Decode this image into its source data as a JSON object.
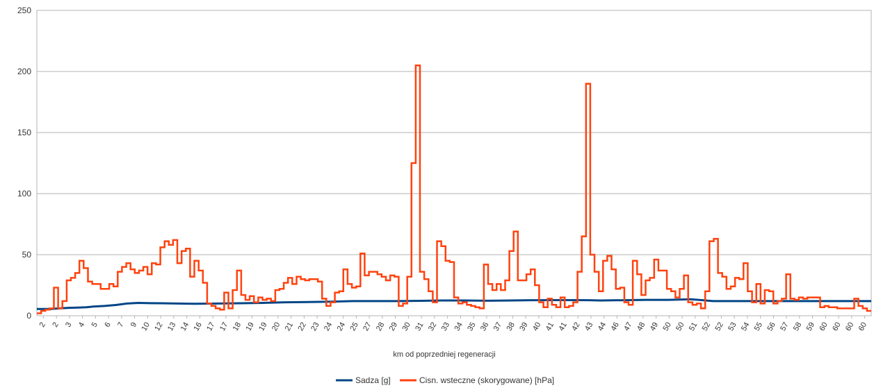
{
  "chart_data": {
    "type": "line",
    "xlabel": "km od poprzedniej regeneracji",
    "ylabel": "",
    "ylim": [
      0,
      250
    ],
    "y_ticks": [
      "0",
      "50",
      "100",
      "150",
      "200",
      "250"
    ],
    "x_tick_labels": [
      "2",
      "2",
      "3",
      "4",
      "5",
      "6",
      "7",
      "8",
      "9",
      "10",
      "11",
      "12",
      "13",
      "14",
      "15",
      "16",
      "17",
      "17",
      "18",
      "19",
      "20",
      "21",
      "22",
      "23",
      "24",
      "25",
      "26",
      "27",
      "28",
      "29",
      "30",
      "31",
      "32",
      "33",
      "34",
      "35",
      "36",
      "37",
      "38",
      "39",
      "40",
      "41",
      "42",
      "43",
      "44",
      "45",
      "46",
      "47",
      "48",
      "49",
      "50",
      "51",
      "52",
      "53",
      "54",
      "55",
      "56",
      "57",
      "58",
      "59",
      "60",
      "60",
      "60"
    ],
    "x_tick_labels_shown": [
      "2",
      "2",
      "3",
      "4",
      "5",
      "6",
      "7",
      "9",
      "10",
      "12",
      "13",
      "14",
      "16",
      "17",
      "17",
      "18",
      "19",
      "19",
      "20",
      "21",
      "22",
      "23",
      "24",
      "24",
      "25",
      "27",
      "28",
      "29",
      "30",
      "31",
      "32",
      "33",
      "34",
      "35",
      "36",
      "37",
      "38",
      "39",
      "40",
      "41",
      "41",
      "42",
      "43",
      "44",
      "46",
      "47",
      "48",
      "49",
      "50",
      "50",
      "51",
      "52",
      "52",
      "53",
      "54",
      "55",
      "56",
      "57",
      "58",
      "59",
      "60",
      "60",
      "60",
      "60"
    ],
    "grid": true,
    "legend_position": "bottom",
    "series": [
      {
        "name": "Sadza [g]",
        "color": "#004586",
        "interpolation": "linear",
        "x": [
          0,
          2,
          4,
          6,
          10,
          14,
          18,
          22,
          25,
          30,
          35,
          40,
          45,
          50,
          55,
          60,
          70,
          80,
          90,
          100,
          110,
          120,
          130,
          140,
          150,
          155,
          160,
          170,
          180,
          190,
          200,
          210,
          220,
          230,
          240,
          245,
          250,
          260,
          270,
          280,
          290,
          300,
          320,
          340,
          350,
          360,
          370
        ],
        "y": [
          5.5,
          5.5,
          5.5,
          5.5,
          6,
          6.5,
          6.7,
          7,
          7.5,
          8,
          8.8,
          10,
          10.5,
          10.3,
          10.2,
          10.1,
          9.8,
          10,
          10.2,
          10.5,
          11,
          11.2,
          11.5,
          12,
          12,
          12,
          12,
          12.2,
          12.5,
          12.5,
          12.3,
          12.5,
          12.7,
          12.8,
          12.8,
          12.7,
          12.5,
          12.7,
          13,
          13,
          13.5,
          12,
          12,
          12,
          12,
          12,
          12
        ]
      },
      {
        "name": "Cisn. wsteczne (skorygowane) [hPa]",
        "color": "#ff420e",
        "interpolation": "step",
        "y": [
          2,
          4,
          5,
          6,
          23,
          6,
          12,
          29,
          31,
          35,
          45,
          39,
          28,
          26,
          26,
          22,
          22,
          26,
          24,
          36,
          40,
          43,
          38,
          35,
          37,
          40,
          34,
          43,
          42,
          56,
          61,
          58,
          62,
          43,
          53,
          55,
          32,
          45,
          37,
          27,
          10,
          8,
          6,
          5,
          19,
          6,
          21,
          37,
          17,
          13,
          16,
          11,
          15,
          13,
          14,
          12,
          21,
          22,
          27,
          31,
          26,
          32,
          30,
          29,
          30,
          30,
          28,
          14,
          8,
          11,
          19,
          20,
          38,
          26,
          23,
          24,
          51,
          33,
          36,
          36,
          34,
          32,
          29,
          33,
          32,
          8,
          10,
          32,
          125,
          205,
          36,
          30,
          20,
          11,
          61,
          57,
          45,
          44,
          15,
          10,
          11,
          9,
          8,
          7,
          6,
          42,
          26,
          21,
          26,
          21,
          29,
          53,
          69,
          29,
          29,
          34,
          38,
          25,
          11,
          7,
          14,
          9,
          7,
          15,
          7,
          8,
          11,
          36,
          65,
          190,
          50,
          36,
          20,
          45,
          49,
          38,
          22,
          23,
          11,
          9,
          45,
          34,
          17,
          29,
          31,
          46,
          37,
          37,
          22,
          20,
          15,
          22,
          33,
          11,
          9,
          10,
          6,
          20,
          61,
          63,
          35,
          32,
          22,
          24,
          31,
          30,
          43,
          20,
          11,
          26,
          10,
          21,
          20,
          10,
          12,
          14,
          34,
          14,
          13,
          15,
          14,
          15,
          15,
          15,
          7,
          8,
          7,
          7,
          6,
          6,
          6,
          6,
          14,
          8,
          6,
          4
        ]
      }
    ]
  }
}
